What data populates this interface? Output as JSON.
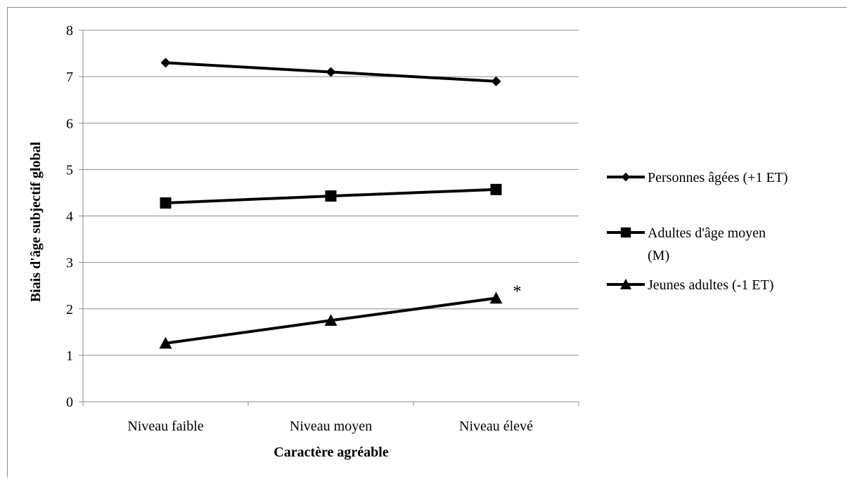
{
  "chart_data": {
    "type": "line",
    "title": "",
    "xlabel": "Caractère agréable",
    "ylabel": "Biais d'âge subjectif global",
    "categories": [
      "Niveau faible",
      "Niveau moyen",
      "Niveau élevé"
    ],
    "ylim": [
      0,
      8
    ],
    "yticks": [
      "0",
      "1",
      "2",
      "3",
      "4",
      "5",
      "6",
      "7",
      "8"
    ],
    "grid": true,
    "legend_position": "right",
    "series": [
      {
        "name": "Personnes âgées (+1 ET)",
        "name_lines": [
          "Personnes âgées (+1 ET)"
        ],
        "marker": "diamond",
        "values": [
          7.3,
          7.1,
          6.9
        ]
      },
      {
        "name": "Adultes d'âge moyen (M)",
        "name_lines": [
          "Adultes d'âge moyen",
          "(M)"
        ],
        "marker": "square",
        "values": [
          4.28,
          4.43,
          4.57
        ]
      },
      {
        "name": "Jeunes adultes (-1 ET)",
        "name_lines": [
          "Jeunes adultes (-1 ET)"
        ],
        "marker": "triangle",
        "values": [
          1.26,
          1.75,
          2.23
        ]
      }
    ],
    "annotations": [
      {
        "text": "*",
        "series": 2,
        "category": 2
      }
    ],
    "line_color": "#000000",
    "grid_color": "#8c8c8c"
  }
}
